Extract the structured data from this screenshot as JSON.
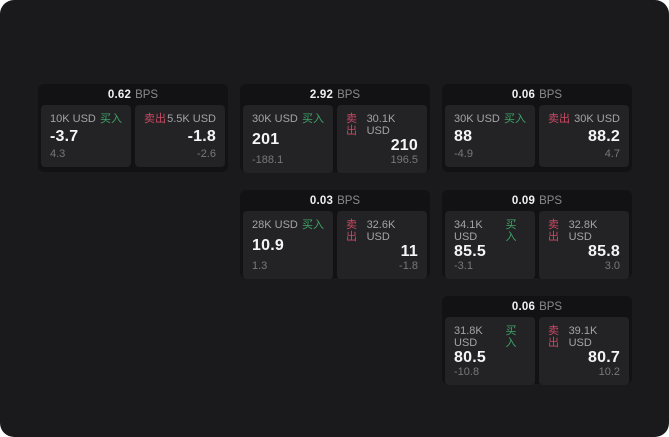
{
  "colors": {
    "screen_bg": "#1a1a1c",
    "card_bg": "#121214",
    "panel_bg": "#232326",
    "buy_green": "#3fa368",
    "sell_red": "#c94a62"
  },
  "labels": {
    "bps_unit": "BPS",
    "buy": "买入",
    "sell": "卖出"
  },
  "cards": [
    {
      "row": 1,
      "col": 1,
      "bps": "0.62",
      "buy": {
        "amount": "10K USD",
        "value": "-3.7",
        "sub": "4.3"
      },
      "sell": {
        "amount": "5.5K USD",
        "value": "-1.8",
        "sub": "-2.6"
      }
    },
    {
      "row": 1,
      "col": 2,
      "bps": "2.92",
      "buy": {
        "amount": "30K USD",
        "value": "201",
        "sub": "-188.1"
      },
      "sell": {
        "amount": "30.1K USD",
        "value": "210",
        "sub": "196.5"
      }
    },
    {
      "row": 1,
      "col": 3,
      "bps": "0.06",
      "buy": {
        "amount": "30K USD",
        "value": "88",
        "sub": "-4.9"
      },
      "sell": {
        "amount": "30K USD",
        "value": "88.2",
        "sub": "4.7"
      }
    },
    {
      "row": 2,
      "col": 2,
      "bps": "0.03",
      "buy": {
        "amount": "28K USD",
        "value": "10.9",
        "sub": "1.3"
      },
      "sell": {
        "amount": "32.6K USD",
        "value": "11",
        "sub": "-1.8"
      }
    },
    {
      "row": 2,
      "col": 3,
      "bps": "0.09",
      "buy": {
        "amount": "34.1K USD",
        "value": "85.5",
        "sub": "-3.1"
      },
      "sell": {
        "amount": "32.8K USD",
        "value": "85.8",
        "sub": "3.0"
      }
    },
    {
      "row": 3,
      "col": 3,
      "bps": "0.06",
      "buy": {
        "amount": "31.8K USD",
        "value": "80.5",
        "sub": "-10.8"
      },
      "sell": {
        "amount": "39.1K USD",
        "value": "80.7",
        "sub": "10.2"
      }
    }
  ]
}
